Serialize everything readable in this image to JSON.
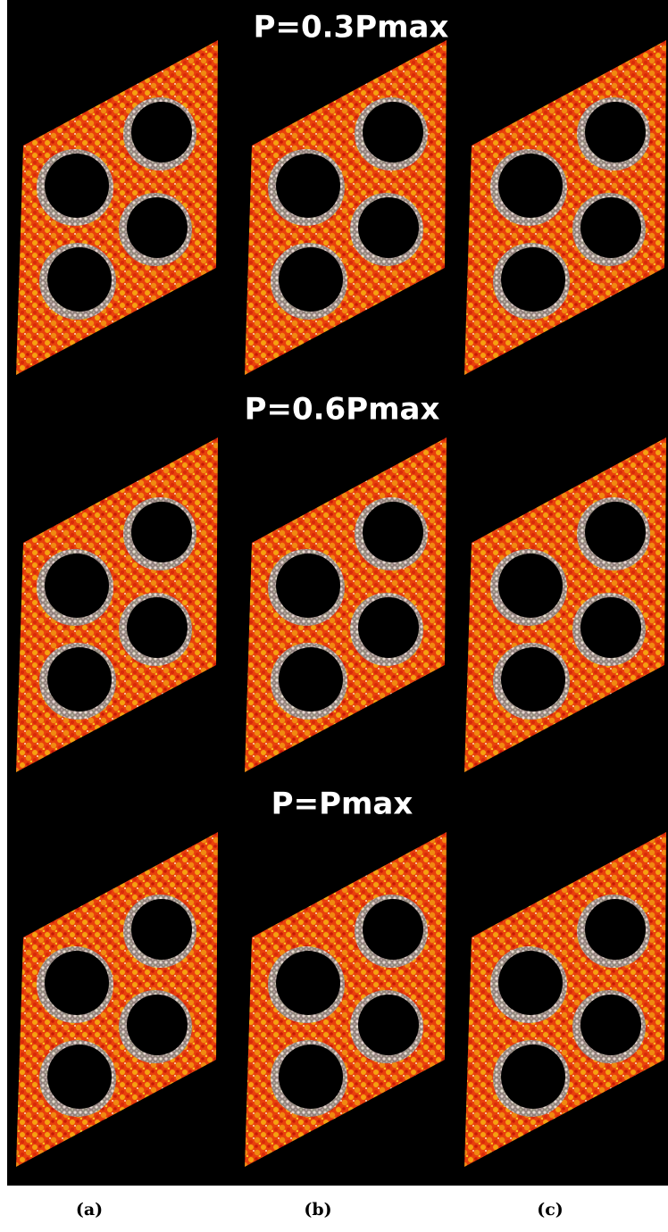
{
  "row_titles": [
    "P=0.3Pmax",
    "P=0.6Pmax",
    "P=Pmax"
  ],
  "column_labels": [
    "(a)",
    "(b)",
    "(c)"
  ]
}
